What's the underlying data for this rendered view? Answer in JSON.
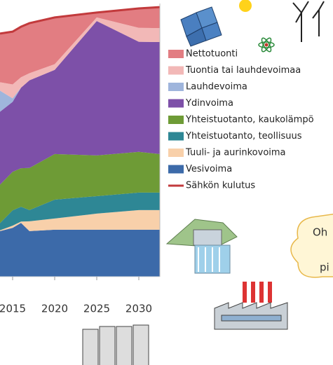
{
  "chart_data": {
    "type": "stacked-area",
    "x": [
      2013.5,
      2015,
      2016,
      2017,
      2020,
      2025,
      2030,
      2032.5
    ],
    "xlim": [
      2013.5,
      2032.5
    ],
    "xticks": [
      2015,
      2020,
      2025,
      2030
    ],
    "ylim": [
      0,
      100
    ],
    "series": [
      {
        "name": "Nettotuonti",
        "color": "#e27d82",
        "values": [
          17.9,
          19.2,
          18.5,
          18.5,
          17.2,
          1.8,
          7.2,
          7.7
        ]
      },
      {
        "name": "Tuontia tai lauhdevoimaa",
        "color": "#f2b8b7",
        "values": [
          3.1,
          5.1,
          3.8,
          2.6,
          2.1,
          1.3,
          5.1,
          5.1
        ]
      },
      {
        "name": "Lauhdevoima",
        "color": "#9fb5dc",
        "values": [
          7.7,
          1.3,
          0,
          0,
          0,
          0,
          0,
          0
        ]
      },
      {
        "name": "Ydinvoima",
        "color": "#7d50a8",
        "values": [
          26.7,
          25.6,
          29.5,
          32.1,
          30.8,
          49.2,
          40.3,
          41
        ]
      },
      {
        "name": "Yhteistuotanto, kaukolämpö",
        "color": "#6e9b36",
        "values": [
          14.1,
          14.1,
          14.1,
          15.4,
          16.7,
          14.9,
          14.9,
          14.1
        ]
      },
      {
        "name": "Yhteistuotanto, teollisuus",
        "color": "#2e8795",
        "values": [
          2.6,
          5.6,
          5.4,
          4.1,
          6.9,
          6.4,
          6.4,
          6.4
        ]
      },
      {
        "name": "Tuuli- ja aurinkovoima",
        "color": "#f8d0aa",
        "values": [
          0.3,
          0.8,
          0.5,
          3.6,
          4.1,
          5.9,
          7.2,
          7.2
        ]
      },
      {
        "name": "Vesivoima",
        "color": "#3c6aa9",
        "values": [
          16.7,
          17.9,
          19.7,
          16.7,
          17.2,
          17.2,
          17.2,
          17.2
        ]
      },
      {
        "name": "Sähkön kulutus",
        "color": "#c23a3c",
        "type": "line",
        "values": [
          89,
          89.7,
          91.5,
          92.8,
          94.9,
          96.7,
          98.2,
          98.7
        ]
      }
    ],
    "annotations": [
      "Oh",
      "pi"
    ]
  }
}
